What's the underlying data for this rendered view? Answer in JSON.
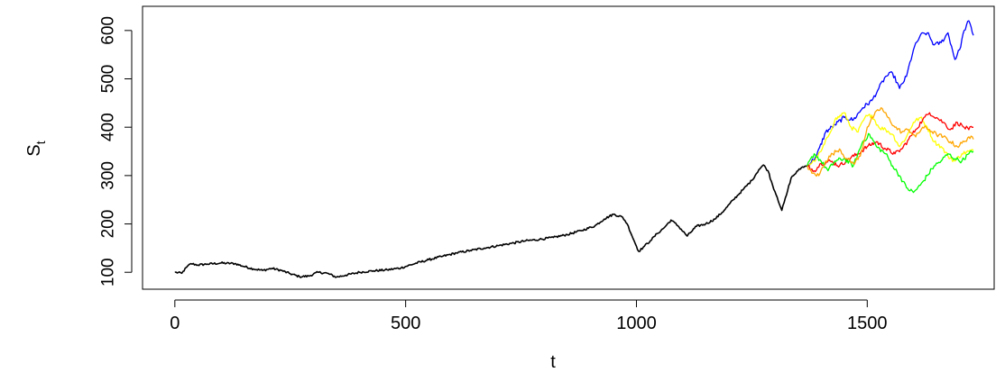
{
  "chart_data": {
    "type": "line",
    "title": "",
    "xlabel": "t",
    "ylabel_main": "S",
    "ylabel_sub": "t",
    "xlim": [
      -70,
      1775
    ],
    "ylim": [
      65,
      650
    ],
    "x_ticks": [
      0,
      500,
      1000,
      1500
    ],
    "x_tick_labels": [
      "0",
      "500",
      "1000",
      "1500"
    ],
    "y_ticks": [
      100,
      200,
      300,
      400,
      500,
      600
    ],
    "y_tick_labels": [
      "100",
      "200",
      "300",
      "400",
      "500",
      "600"
    ],
    "grid": false,
    "legend": "none",
    "series": [
      {
        "color": "#000000",
        "points": [
          [
            0,
            100
          ],
          [
            15,
            98
          ],
          [
            25,
            110
          ],
          [
            35,
            118
          ],
          [
            50,
            115
          ],
          [
            70,
            117
          ],
          [
            100,
            119
          ],
          [
            130,
            118
          ],
          [
            150,
            112
          ],
          [
            170,
            107
          ],
          [
            190,
            104
          ],
          [
            210,
            108
          ],
          [
            230,
            104
          ],
          [
            250,
            97
          ],
          [
            270,
            91
          ],
          [
            290,
            92
          ],
          [
            310,
            100
          ],
          [
            330,
            98
          ],
          [
            350,
            90
          ],
          [
            370,
            94
          ],
          [
            400,
            100
          ],
          [
            430,
            103
          ],
          [
            460,
            105
          ],
          [
            490,
            109
          ],
          [
            520,
            118
          ],
          [
            550,
            126
          ],
          [
            580,
            133
          ],
          [
            610,
            140
          ],
          [
            640,
            145
          ],
          [
            670,
            150
          ],
          [
            700,
            155
          ],
          [
            730,
            160
          ],
          [
            760,
            165
          ],
          [
            790,
            168
          ],
          [
            820,
            172
          ],
          [
            850,
            178
          ],
          [
            880,
            186
          ],
          [
            910,
            196
          ],
          [
            930,
            210
          ],
          [
            950,
            220
          ],
          [
            970,
            214
          ],
          [
            980,
            200
          ],
          [
            995,
            165
          ],
          [
            1005,
            143
          ],
          [
            1015,
            152
          ],
          [
            1030,
            165
          ],
          [
            1045,
            180
          ],
          [
            1060,
            192
          ],
          [
            1075,
            208
          ],
          [
            1090,
            196
          ],
          [
            1110,
            175
          ],
          [
            1130,
            195
          ],
          [
            1150,
            200
          ],
          [
            1170,
            210
          ],
          [
            1190,
            228
          ],
          [
            1210,
            250
          ],
          [
            1230,
            270
          ],
          [
            1250,
            290
          ],
          [
            1265,
            312
          ],
          [
            1275,
            322
          ],
          [
            1285,
            310
          ],
          [
            1295,
            280
          ],
          [
            1305,
            255
          ],
          [
            1315,
            228
          ],
          [
            1325,
            260
          ],
          [
            1335,
            295
          ],
          [
            1350,
            310
          ],
          [
            1360,
            318
          ],
          [
            1370,
            320
          ]
        ]
      },
      {
        "color": "#0000ff",
        "points": [
          [
            1370,
            320
          ],
          [
            1390,
            340
          ],
          [
            1410,
            390
          ],
          [
            1430,
            405
          ],
          [
            1450,
            420
          ],
          [
            1470,
            415
          ],
          [
            1490,
            440
          ],
          [
            1510,
            455
          ],
          [
            1525,
            480
          ],
          [
            1540,
            505
          ],
          [
            1555,
            512
          ],
          [
            1570,
            480
          ],
          [
            1585,
            505
          ],
          [
            1600,
            560
          ],
          [
            1615,
            590
          ],
          [
            1630,
            595
          ],
          [
            1645,
            570
          ],
          [
            1660,
            575
          ],
          [
            1675,
            595
          ],
          [
            1690,
            540
          ],
          [
            1700,
            560
          ],
          [
            1710,
            600
          ],
          [
            1720,
            620
          ],
          [
            1730,
            590
          ]
        ]
      },
      {
        "color": "#ffff00",
        "points": [
          [
            1370,
            320
          ],
          [
            1385,
            330
          ],
          [
            1400,
            350
          ],
          [
            1415,
            380
          ],
          [
            1430,
            415
          ],
          [
            1450,
            430
          ],
          [
            1465,
            400
          ],
          [
            1480,
            390
          ],
          [
            1495,
            420
          ],
          [
            1510,
            425
          ],
          [
            1525,
            400
          ],
          [
            1540,
            395
          ],
          [
            1555,
            385
          ],
          [
            1570,
            360
          ],
          [
            1585,
            380
          ],
          [
            1600,
            410
          ],
          [
            1615,
            420
          ],
          [
            1630,
            400
          ],
          [
            1645,
            370
          ],
          [
            1660,
            360
          ],
          [
            1675,
            340
          ],
          [
            1690,
            330
          ],
          [
            1705,
            345
          ],
          [
            1720,
            350
          ],
          [
            1730,
            352
          ]
        ]
      },
      {
        "color": "#ff0000",
        "points": [
          [
            1370,
            320
          ],
          [
            1385,
            310
          ],
          [
            1400,
            325
          ],
          [
            1420,
            330
          ],
          [
            1440,
            320
          ],
          [
            1460,
            335
          ],
          [
            1480,
            345
          ],
          [
            1500,
            360
          ],
          [
            1520,
            370
          ],
          [
            1540,
            355
          ],
          [
            1560,
            345
          ],
          [
            1575,
            355
          ],
          [
            1590,
            375
          ],
          [
            1605,
            395
          ],
          [
            1620,
            415
          ],
          [
            1635,
            430
          ],
          [
            1650,
            420
          ],
          [
            1665,
            410
          ],
          [
            1680,
            395
          ],
          [
            1695,
            410
          ],
          [
            1710,
            400
          ],
          [
            1720,
            395
          ],
          [
            1730,
            400
          ]
        ]
      },
      {
        "color": "#00ff00",
        "points": [
          [
            1370,
            320
          ],
          [
            1385,
            345
          ],
          [
            1400,
            330
          ],
          [
            1415,
            310
          ],
          [
            1430,
            330
          ],
          [
            1450,
            335
          ],
          [
            1470,
            320
          ],
          [
            1490,
            370
          ],
          [
            1505,
            385
          ],
          [
            1520,
            360
          ],
          [
            1540,
            345
          ],
          [
            1555,
            320
          ],
          [
            1570,
            300
          ],
          [
            1585,
            275
          ],
          [
            1600,
            265
          ],
          [
            1615,
            280
          ],
          [
            1630,
            300
          ],
          [
            1645,
            320
          ],
          [
            1660,
            330
          ],
          [
            1675,
            345
          ],
          [
            1690,
            335
          ],
          [
            1705,
            330
          ],
          [
            1720,
            345
          ],
          [
            1730,
            350
          ]
        ]
      },
      {
        "color": "#ffa500",
        "points": [
          [
            1370,
            320
          ],
          [
            1380,
            305
          ],
          [
            1395,
            300
          ],
          [
            1410,
            330
          ],
          [
            1425,
            345
          ],
          [
            1440,
            355
          ],
          [
            1455,
            335
          ],
          [
            1470,
            325
          ],
          [
            1485,
            340
          ],
          [
            1500,
            400
          ],
          [
            1515,
            425
          ],
          [
            1530,
            440
          ],
          [
            1545,
            420
          ],
          [
            1560,
            400
          ],
          [
            1575,
            390
          ],
          [
            1590,
            395
          ],
          [
            1605,
            380
          ],
          [
            1620,
            400
          ],
          [
            1635,
            395
          ],
          [
            1650,
            385
          ],
          [
            1665,
            380
          ],
          [
            1680,
            370
          ],
          [
            1695,
            360
          ],
          [
            1710,
            370
          ],
          [
            1720,
            380
          ],
          [
            1730,
            375
          ]
        ]
      }
    ]
  }
}
